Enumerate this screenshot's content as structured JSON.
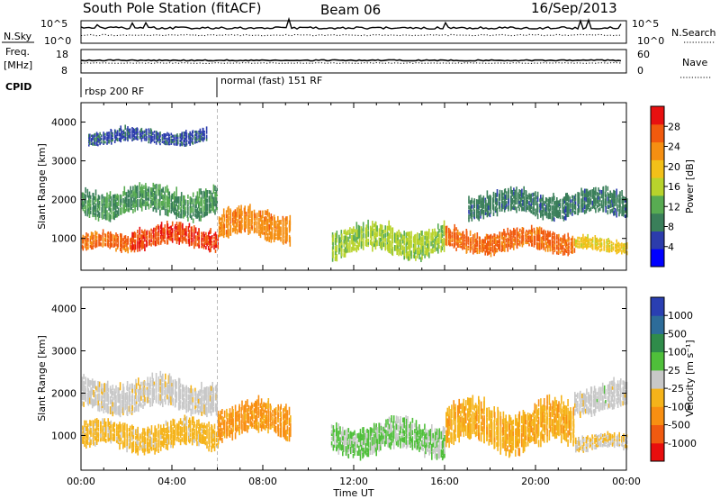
{
  "header": {
    "station": "South Pole Station (fitACF)",
    "beam": "Beam 06",
    "date": "16/Sep/2013"
  },
  "param_panels": {
    "nsky_label": "N.Sky",
    "nsky_ticks": [
      "10^5",
      "10^0"
    ],
    "freq_label": "Freq.",
    "freq_unit": "[MHz]",
    "freq_ticks": [
      "18",
      "8"
    ],
    "cpid_label": "CPID",
    "nsearch_label": "N.Search",
    "nave_label": "Nave",
    "nave_ticks": [
      "60",
      "0"
    ],
    "cpid_segments": [
      {
        "label": "rbsp 200 RF",
        "start_hour": 0
      },
      {
        "label": "normal (fast) 151 RF",
        "start_hour": 6
      }
    ]
  },
  "colors": {
    "power_scale": [
      "#0000ff",
      "#2c3cac",
      "#3a7f5a",
      "#58ab52",
      "#b8d32c",
      "#f2c019",
      "#f58f12",
      "#f15a0e",
      "#e81010"
    ],
    "velocity_scale": [
      "#e80e0e",
      "#f05a10",
      "#f88f12",
      "#f5b31a",
      "#c8c8c8",
      "#4fbf3a",
      "#2f8c4a",
      "#2d6c99",
      "#2a3fb2"
    ]
  },
  "chart_data": [
    {
      "type": "heatmap",
      "panel": "power",
      "x": {
        "label": "",
        "unit": "hours UT",
        "range": [
          0,
          24
        ],
        "ticks": [
          0,
          4,
          8,
          12,
          16,
          20,
          24
        ]
      },
      "y": {
        "label": "Slant Range [km]",
        "range": [
          180,
          4500
        ],
        "ticks": [
          1000,
          2000,
          3000,
          4000
        ]
      },
      "colorbar": {
        "label": "Power [dB]",
        "tick_labels": [
          "4",
          "8",
          "12",
          "16",
          "20",
          "24",
          "28"
        ],
        "range": [
          0,
          30
        ]
      },
      "echo_regions": [
        {
          "t0": 0.0,
          "t1": 2.2,
          "r0": 600,
          "r1": 1100,
          "level": 24
        },
        {
          "t0": 2.2,
          "t1": 6.0,
          "r0": 700,
          "r1": 1300,
          "level": 26
        },
        {
          "t0": 6.0,
          "t1": 9.2,
          "r0": 900,
          "r1": 1700,
          "level": 22
        },
        {
          "t0": 0.0,
          "t1": 6.0,
          "r0": 1500,
          "r1": 2300,
          "level": 10
        },
        {
          "t0": 0.3,
          "t1": 5.5,
          "r0": 3400,
          "r1": 3800,
          "level": 6
        },
        {
          "t0": 11.0,
          "t1": 16.0,
          "r0": 500,
          "r1": 1300,
          "level": 14
        },
        {
          "t0": 16.0,
          "t1": 21.7,
          "r0": 600,
          "r1": 1200,
          "level": 24
        },
        {
          "t0": 17.0,
          "t1": 24.0,
          "r0": 1500,
          "r1": 2200,
          "level": 8
        },
        {
          "t0": 21.7,
          "t1": 24.0,
          "r0": 600,
          "r1": 1000,
          "level": 18
        }
      ]
    },
    {
      "type": "heatmap",
      "panel": "velocity",
      "x": {
        "label": "Time UT",
        "unit": "hours UT",
        "range": [
          0,
          24
        ],
        "ticks": [
          0,
          4,
          8,
          12,
          16,
          20,
          24
        ],
        "tick_labels": [
          "00:00",
          "04:00",
          "08:00",
          "12:00",
          "16:00",
          "20:00",
          "00:00"
        ]
      },
      "y": {
        "label": "Slant Range [km]",
        "range": [
          180,
          4500
        ],
        "ticks": [
          1000,
          2000,
          3000,
          4000
        ]
      },
      "colorbar": {
        "label": "Velocity [m s⁻¹]",
        "tick_labels": [
          "-1000",
          "-500",
          "-100",
          "-25",
          "25",
          "100",
          "500",
          "1000"
        ],
        "range": [
          -1500,
          1500
        ]
      },
      "echo_regions": [
        {
          "t0": 0.0,
          "t1": 6.0,
          "r0": 600,
          "r1": 1300,
          "level": -300
        },
        {
          "t0": 6.0,
          "t1": 9.2,
          "r0": 900,
          "r1": 1700,
          "level": -600
        },
        {
          "t0": 0.0,
          "t1": 6.0,
          "r0": 1500,
          "r1": 2300,
          "level": -20
        },
        {
          "t0": 11.0,
          "t1": 16.0,
          "r0": 500,
          "r1": 1300,
          "level": 200
        },
        {
          "t0": 16.0,
          "t1": 21.7,
          "r0": 600,
          "r1": 1700,
          "level": -400
        },
        {
          "t0": 21.7,
          "t1": 24.0,
          "r0": 1500,
          "r1": 2200,
          "level": 0
        },
        {
          "t0": 21.7,
          "t1": 24.0,
          "r0": 600,
          "r1": 1000,
          "level": -150
        }
      ]
    }
  ]
}
